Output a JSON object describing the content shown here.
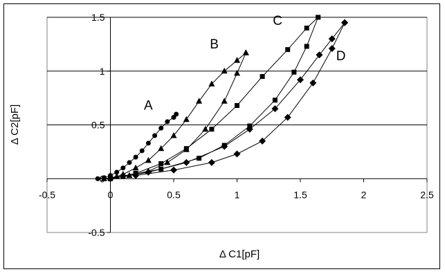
{
  "chart_data": {
    "type": "scatter",
    "title": "",
    "xlabel": "Δ C1[pF]",
    "ylabel": "Δ C2[pF]",
    "xlim": [
      -0.5,
      2.5
    ],
    "ylim": [
      -0.5,
      1.5
    ],
    "x_ticks": [
      -0.5,
      0,
      0.5,
      1,
      1.5,
      2,
      2.5
    ],
    "x_tick_labels": [
      "-0.5",
      "0",
      "0.5",
      "1",
      "1.5",
      "2",
      "2.5"
    ],
    "y_ticks": [
      -0.5,
      0,
      0.5,
      1,
      1.5
    ],
    "y_tick_labels": [
      "-0.5",
      "0",
      "0.5",
      "1",
      "1.5"
    ],
    "grid": "horizontal major gridlines",
    "legend": "none",
    "series": [
      {
        "name": "A",
        "marker": "circle",
        "color": "#000000",
        "x": [
          -0.1,
          -0.05,
          0.0,
          0.05,
          0.1,
          0.15,
          0.2,
          0.25,
          0.3,
          0.35,
          0.4,
          0.45,
          0.5,
          0.52
        ],
        "y": [
          0.0,
          0.01,
          0.03,
          0.06,
          0.1,
          0.15,
          0.2,
          0.26,
          0.33,
          0.4,
          0.47,
          0.53,
          0.57,
          0.6
        ]
      },
      {
        "name": "B",
        "marker": "triangle",
        "color": "#000000",
        "x": [
          -0.05,
          0.0,
          0.05,
          0.1,
          0.2,
          0.3,
          0.4,
          0.5,
          0.6,
          0.7,
          0.8,
          0.9,
          1.0,
          1.07
        ],
        "y": [
          0.0,
          0.01,
          0.02,
          0.04,
          0.1,
          0.17,
          0.28,
          0.4,
          0.55,
          0.72,
          0.88,
          1.0,
          1.1,
          1.17
        ]
      },
      {
        "name": "B",
        "marker": "triangle",
        "color": "#000000",
        "x": [
          0.0,
          0.15,
          0.3,
          0.45,
          0.6,
          0.75,
          0.9,
          1.0,
          1.07
        ],
        "y": [
          0.01,
          0.03,
          0.07,
          0.15,
          0.27,
          0.46,
          0.72,
          0.98,
          1.17
        ]
      },
      {
        "name": "C",
        "marker": "square",
        "color": "#000000",
        "x": [
          0.0,
          0.2,
          0.4,
          0.6,
          0.8,
          1.0,
          1.2,
          1.4,
          1.55,
          1.64
        ],
        "y": [
          0.0,
          0.05,
          0.14,
          0.28,
          0.46,
          0.68,
          0.95,
          1.2,
          1.4,
          1.5
        ]
      },
      {
        "name": "C",
        "marker": "square",
        "color": "#000000",
        "x": [
          0.1,
          0.4,
          0.7,
          0.9,
          1.1,
          1.3,
          1.45,
          1.55,
          1.64
        ],
        "y": [
          0.02,
          0.09,
          0.19,
          0.31,
          0.49,
          0.73,
          0.99,
          1.23,
          1.5
        ]
      },
      {
        "name": "D",
        "marker": "diamond",
        "color": "#000000",
        "x": [
          0.0,
          0.3,
          0.6,
          0.9,
          1.1,
          1.3,
          1.5,
          1.65,
          1.75,
          1.85
        ],
        "y": [
          0.0,
          0.06,
          0.15,
          0.3,
          0.46,
          0.65,
          0.92,
          1.15,
          1.3,
          1.45
        ]
      },
      {
        "name": "D",
        "marker": "diamond",
        "color": "#000000",
        "x": [
          0.2,
          0.5,
          0.8,
          1.0,
          1.2,
          1.4,
          1.6,
          1.75,
          1.85
        ],
        "y": [
          0.03,
          0.08,
          0.15,
          0.23,
          0.35,
          0.57,
          0.89,
          1.21,
          1.45
        ]
      }
    ],
    "annotations": [
      {
        "text": "A",
        "x": 0.3,
        "y": 0.64
      },
      {
        "text": "B",
        "x": 0.82,
        "y": 1.21
      },
      {
        "text": "C",
        "x": 1.32,
        "y": 1.43
      },
      {
        "text": "D",
        "x": 1.82,
        "y": 1.1
      }
    ]
  }
}
